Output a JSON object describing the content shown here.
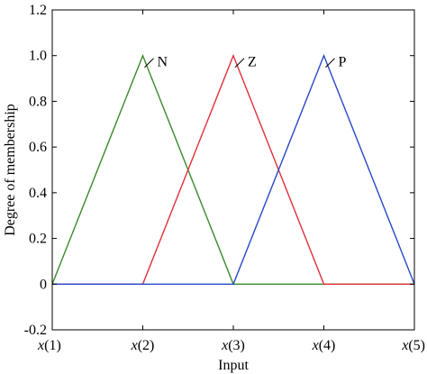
{
  "chart_data": {
    "type": "line",
    "xlabel": "Input",
    "ylabel": "Degree of membership",
    "x_ticks": [
      {
        "value": 1,
        "label": "x(1)"
      },
      {
        "value": 2,
        "label": "x(2)"
      },
      {
        "value": 3,
        "label": "x(3)"
      },
      {
        "value": 4,
        "label": "x(4)"
      },
      {
        "value": 5,
        "label": "x(5)"
      }
    ],
    "y_ticks": [
      {
        "value": -0.2,
        "label": "-0.2"
      },
      {
        "value": 0,
        "label": "0"
      },
      {
        "value": 0.2,
        "label": "0.2"
      },
      {
        "value": 0.4,
        "label": "0.4"
      },
      {
        "value": 0.6,
        "label": "0.6"
      },
      {
        "value": 0.8,
        "label": "0.8"
      },
      {
        "value": 1.0,
        "label": "1.0"
      },
      {
        "value": 1.2,
        "label": "1.2"
      }
    ],
    "xlim": [
      1,
      5
    ],
    "ylim": [
      -0.2,
      1.2
    ],
    "grid": false,
    "series": [
      {
        "name": "N",
        "color": "#3a8a2a",
        "x": [
          1,
          2,
          3,
          5
        ],
        "y": [
          0,
          1,
          0,
          0
        ]
      },
      {
        "name": "Z",
        "color": "#e0303a",
        "x": [
          1,
          2,
          3,
          4,
          5
        ],
        "y": [
          0,
          0,
          1,
          0,
          0
        ]
      },
      {
        "name": "P",
        "color": "#2848c8",
        "x": [
          1,
          3,
          4,
          5
        ],
        "y": [
          0,
          0,
          1,
          0
        ]
      }
    ]
  }
}
